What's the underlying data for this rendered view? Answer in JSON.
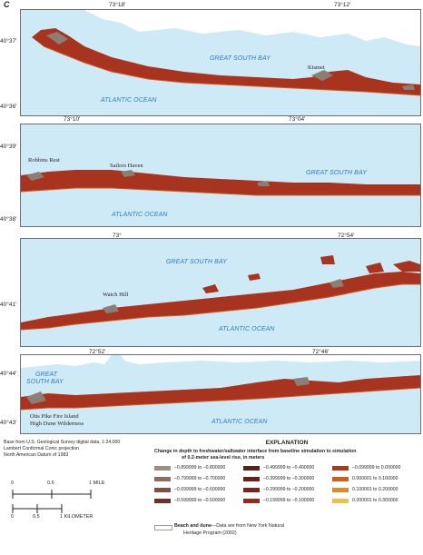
{
  "panel_letter": "C",
  "panels": [
    {
      "lon_ticks": [
        "73°18′",
        "73°12′"
      ],
      "lat_ticks": [
        "40°37′",
        "40°36′"
      ],
      "bay_label": "GREAT SOUTH BAY",
      "ocean_label": "ATLANTIC OCEAN",
      "places": [
        "Kismet"
      ]
    },
    {
      "lon_ticks": [
        "73°10′",
        "73°04′"
      ],
      "lat_ticks": [
        "40°39′",
        "40°38′"
      ],
      "bay_label": "GREAT SOUTH BAY",
      "ocean_label": "ATLANTIC OCEAN",
      "places": [
        "Robbins Rest",
        "Sailors Haven"
      ]
    },
    {
      "lon_ticks": [
        "73°",
        "72°54′"
      ],
      "lat_ticks": [
        "40°41′"
      ],
      "bay_label": "GREAT SOUTH BAY",
      "ocean_label": "ATLANTIC OCEAN",
      "places": [
        "Watch Hill"
      ]
    },
    {
      "lon_ticks": [
        "72°52′",
        "72°46′"
      ],
      "lat_ticks": [
        "40°44′",
        "40°43′"
      ],
      "bay_label_line1": "GREAT",
      "bay_label_line2": "SOUTH BAY",
      "ocean_label": "ATLANTIC OCEAN",
      "places": [
        "Otis Pike Fire Island",
        "High Dune Wilderness"
      ]
    }
  ],
  "source_note": [
    "Base from U.S. Geological Survey digital data, 1:24,000",
    "Lambert Conformal Conic projection",
    "North American Datum of 1983"
  ],
  "scale_bar": {
    "miles_labels": [
      "0",
      "0.5",
      "1 MILE"
    ],
    "km_labels": [
      "0",
      "0.5",
      "1 KILOMETER"
    ]
  },
  "legend": {
    "title": "EXPLANATION",
    "subtitle_line1": "Change in depth to freshwater/saltwater interface from baseline simulation to simulation",
    "subtitle_line2": "of 0.2-meter sea-level rise, in meters",
    "classes": [
      {
        "label": "–0.899999 to –0.800000",
        "color": "#a08d84"
      },
      {
        "label": "–0.799999 to –0.700000",
        "color": "#8c6f62"
      },
      {
        "label": "–0.699999 to –0.600000",
        "color": "#7a5142"
      },
      {
        "label": "–0.599999 to –0.500000",
        "color": "#6a3329"
      },
      {
        "label": "–0.499999 to –0.400000",
        "color": "#5a2018"
      },
      {
        "label": "–0.399999 to –0.300000",
        "color": "#6e1e16"
      },
      {
        "label": "–0.299999 to –0.200000",
        "color": "#82201a"
      },
      {
        "label": "–0.199999 to –0.100000",
        "color": "#98281e"
      },
      {
        "label": "–0.099999 to 0.000000",
        "color": "#b5361e"
      },
      {
        "label": "0.000001 to 0.100000",
        "color": "#d45a1e"
      },
      {
        "label": "0.100001 to 0.200000",
        "color": "#e08a20"
      },
      {
        "label": "0.200001 to 0.300000",
        "color": "#ecc14a"
      }
    ],
    "beach_dune_label": "Beach and dune",
    "beach_dune_note_line1": "—Data are from New York Natural",
    "beach_dune_note_line2": "Heritage Program (2002)"
  },
  "colors": {
    "water": "#cfeaf7",
    "land": "#ffffff",
    "island": "#a8331f",
    "dune": "#8c7d75",
    "water_label": "#2e7bbf"
  }
}
